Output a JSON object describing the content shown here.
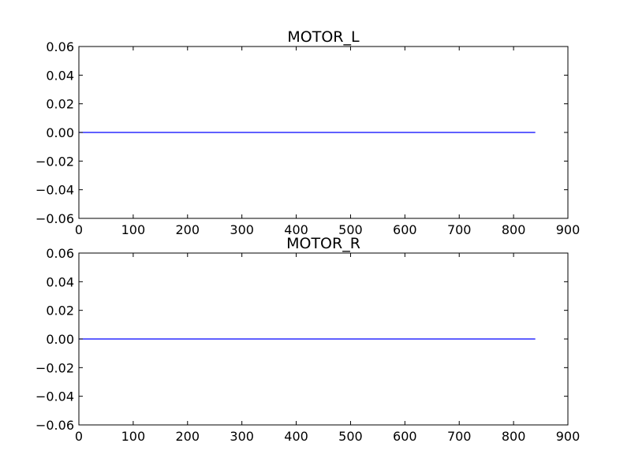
{
  "figure": {
    "background": "#ffffff"
  },
  "chart_data": [
    {
      "type": "line",
      "title": "MOTOR_L",
      "xlabel": "",
      "ylabel": "",
      "xlim": [
        0,
        900
      ],
      "ylim": [
        -0.06,
        0.06
      ],
      "xticks": [
        0,
        100,
        200,
        300,
        400,
        500,
        600,
        700,
        800,
        900
      ],
      "xtick_labels": [
        "0",
        "100",
        "200",
        "300",
        "400",
        "500",
        "600",
        "700",
        "800",
        "900"
      ],
      "yticks": [
        0.06,
        0.04,
        0.02,
        0.0,
        -0.02,
        -0.04,
        -0.06
      ],
      "ytick_labels": [
        "0.06",
        "0.04",
        "0.02",
        "0.00",
        "−0.02",
        "−0.04",
        "−0.06"
      ],
      "grid": false,
      "series": [
        {
          "color": "#0000ff",
          "x": [
            0,
            840
          ],
          "y": [
            0.0,
            0.0
          ]
        }
      ]
    },
    {
      "type": "line",
      "title": "MOTOR_R",
      "xlabel": "",
      "ylabel": "",
      "xlim": [
        0,
        900
      ],
      "ylim": [
        -0.06,
        0.06
      ],
      "xticks": [
        0,
        100,
        200,
        300,
        400,
        500,
        600,
        700,
        800,
        900
      ],
      "xtick_labels": [
        "0",
        "100",
        "200",
        "300",
        "400",
        "500",
        "600",
        "700",
        "800",
        "900"
      ],
      "yticks": [
        0.06,
        0.04,
        0.02,
        0.0,
        -0.02,
        -0.04,
        -0.06
      ],
      "ytick_labels": [
        "0.06",
        "0.04",
        "0.02",
        "0.00",
        "−0.02",
        "−0.04",
        "−0.06"
      ],
      "grid": false,
      "series": [
        {
          "color": "#0000ff",
          "x": [
            0,
            840
          ],
          "y": [
            0.0,
            0.0
          ]
        }
      ]
    }
  ]
}
